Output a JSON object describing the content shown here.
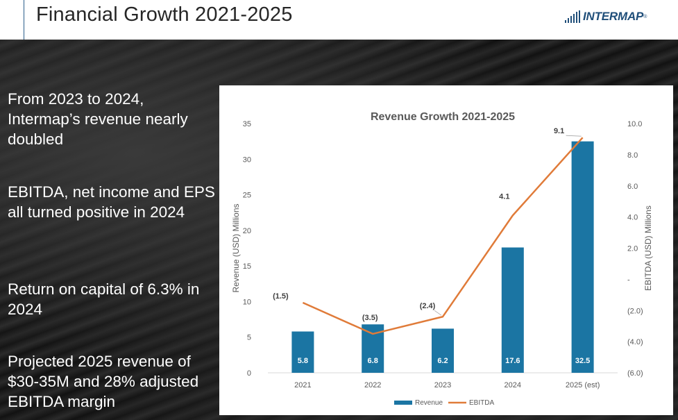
{
  "header": {
    "title": "Financial Growth 2021-2025",
    "logo_text": "INTERMAP",
    "logo_mark": "®"
  },
  "bullets": [
    "From 2023 to 2024, Intermap’s revenue nearly doubled",
    "EBITDA, net income and EPS all turned positive in 2024",
    "Return on capital of 6.3% in 2024",
    "Projected 2025 revenue of $30-35M and 28% adjusted EBITDA margin"
  ],
  "colors": {
    "bar": "#1b75a3",
    "line": "#e07b39",
    "header_text": "#262626",
    "logo": "#1f4e79"
  },
  "chart_data": {
    "type": "bar",
    "title": "Revenue Growth 2021-2025",
    "categories": [
      "2021",
      "2022",
      "2023",
      "2024",
      "2025 (est)"
    ],
    "series": [
      {
        "name": "Revenue",
        "type": "bar",
        "axis": "left",
        "values": [
          5.8,
          6.8,
          6.2,
          17.6,
          32.5
        ],
        "labels": [
          "5.8",
          "6.8",
          "6.2",
          "17.6",
          "32.5"
        ]
      },
      {
        "name": "EBITDA",
        "type": "line",
        "axis": "right",
        "values": [
          -1.5,
          -3.5,
          -2.4,
          4.1,
          9.1
        ],
        "labels": [
          "(1.5)",
          "(3.5)",
          "(2.4)",
          "4.1",
          "9.1"
        ]
      }
    ],
    "ylabel": "Revenue (USD) Millions",
    "y2label": "EBITDA (USD) Millions",
    "ylim": [
      0,
      35
    ],
    "y2lim": [
      -6,
      10
    ],
    "yticks": [
      "0",
      "5",
      "10",
      "15",
      "20",
      "25",
      "30",
      "35"
    ],
    "y2ticks": [
      "(6.0)",
      "(4.0)",
      "(2.0)",
      "-",
      "2.0",
      "4.0",
      "6.0",
      "8.0",
      "10.0"
    ],
    "grid": false,
    "legend": "bottom"
  }
}
